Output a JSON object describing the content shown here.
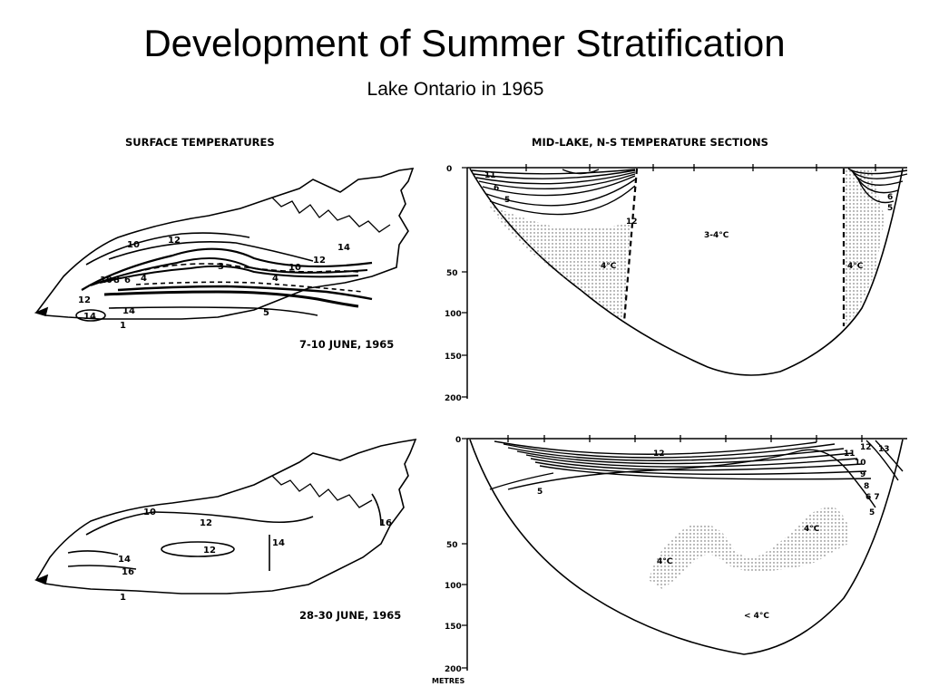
{
  "title": "Development of Summer Stratification",
  "subtitle": "Lake Ontario in 1965",
  "headers": {
    "surface": "SURFACE TEMPERATURES",
    "sections": "MID-LAKE, N-S TEMPERATURE SECTIONS"
  },
  "maps": [
    {
      "date": "7-10 JUNE, 1965",
      "contour_labels": [
        "10",
        "12",
        "14",
        "12",
        "10",
        "3",
        "4",
        "10",
        "8",
        "6",
        "4",
        "12",
        "14",
        "14",
        "5",
        "1"
      ]
    },
    {
      "date": "28-30 JUNE, 1965",
      "contour_labels": [
        "10",
        "12",
        "14",
        "12",
        "14",
        "16",
        "16",
        "1"
      ]
    }
  ],
  "sections": [
    {
      "depth_ticks": [
        "0",
        "50",
        "100",
        "150",
        "200"
      ],
      "isotherm_labels": [
        "11",
        "6",
        "5",
        "12",
        "6",
        "5"
      ],
      "region_labels": [
        "3-4°C",
        "4°C",
        "4°C"
      ]
    },
    {
      "depth_ticks": [
        "0",
        "50",
        "100",
        "150",
        "200"
      ],
      "depth_unit": "METRES",
      "isotherm_labels": [
        "12",
        "12",
        "13",
        "11",
        "10",
        "9",
        "8",
        "6 7",
        "5",
        "5"
      ],
      "region_labels": [
        "4°C",
        "4°C",
        "< 4°C"
      ]
    }
  ]
}
